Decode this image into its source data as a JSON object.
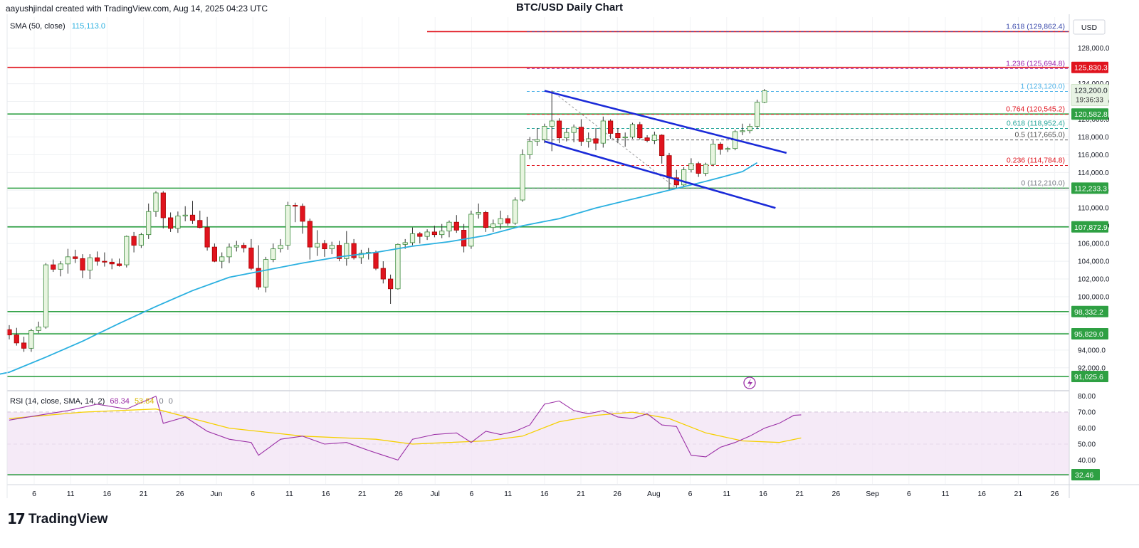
{
  "header": {
    "attribution": "aayushjindal created with TradingView.com, Aug 14, 2025 04:23 UTC",
    "title": "BTC/USD Daily Chart",
    "currency": "USD"
  },
  "sma_legend": {
    "label": "SMA (50, close)",
    "value": "115,113.0"
  },
  "rsi_legend": {
    "label": "RSI (14, close, SMA, 14, 2)",
    "value1": "68.34",
    "value2": "53.84",
    "value3": "0",
    "value4": "0"
  },
  "price_badge": {
    "price": "123,200.0",
    "countdown": "19:36:33"
  },
  "brand": {
    "name": "TradingView"
  },
  "colors": {
    "up": "#26a69a",
    "up_fill": "#ffffff",
    "down": "#e0141e",
    "sma": "#2ab0e0",
    "channel": "#1a2ad8",
    "support": "#2ea043",
    "resistance": "#e0141e",
    "rsi": "#9b2fa6",
    "rsi_sma": "#f5d000",
    "rsi_band": "#f3e5f5"
  },
  "chart_data": [
    {
      "type": "line",
      "title": "BTC/USD Daily Chart",
      "ylabel": "USD",
      "ylim": [
        89500,
        131500
      ],
      "x_ticks": [
        "6",
        "11",
        "16",
        "21",
        "26",
        "Jun",
        "6",
        "11",
        "16",
        "21",
        "26",
        "Jul",
        "6",
        "11",
        "16",
        "21",
        "26",
        "Aug",
        "6",
        "11",
        "16",
        "21",
        "26",
        "Sep",
        "6",
        "11",
        "16",
        "21",
        "26"
      ],
      "y_ticks": [
        "92,000.0",
        "94,000.0",
        "96,000.0",
        "98,000.0",
        "100,000.0",
        "102,000.0",
        "104,000.0",
        "106,000.0",
        "108,000.0",
        "110,000.0",
        "112,000.0",
        "114,000.0",
        "116,000.0",
        "118,000.0",
        "120,000.0",
        "122,000.0",
        "124,000.0",
        "128,000.0"
      ],
      "candles_ohlc": [
        [
          96300,
          96800,
          95200,
          95700
        ],
        [
          95700,
          96500,
          94500,
          94800
        ],
        [
          94800,
          95500,
          93800,
          94200
        ],
        [
          94200,
          96400,
          93800,
          96200
        ],
        [
          96200,
          97200,
          95900,
          96600
        ],
        [
          96600,
          103800,
          96400,
          103600
        ],
        [
          103600,
          104200,
          102800,
          103100
        ],
        [
          103100,
          104000,
          102300,
          103700
        ],
        [
          103700,
          105400,
          102600,
          104500
        ],
        [
          104500,
          105300,
          103800,
          104300
        ],
        [
          104300,
          104800,
          102100,
          103000
        ],
        [
          103000,
          104800,
          102000,
          104400
        ],
        [
          104400,
          105100,
          103500,
          104000
        ],
        [
          104000,
          105000,
          103400,
          103900
        ],
        [
          103900,
          104300,
          103100,
          103700
        ],
        [
          103700,
          104300,
          103400,
          103500
        ],
        [
          103600,
          106900,
          103300,
          106800
        ],
        [
          106800,
          107300,
          105000,
          105800
        ],
        [
          105800,
          107200,
          105500,
          107000
        ],
        [
          107000,
          110500,
          106500,
          109600
        ],
        [
          109600,
          111900,
          109000,
          111700
        ],
        [
          111700,
          111900,
          107700,
          108900
        ],
        [
          108900,
          109500,
          107300,
          107700
        ],
        [
          107700,
          109600,
          107200,
          109100
        ],
        [
          109100,
          110200,
          108500,
          109200
        ],
        [
          109200,
          110800,
          108200,
          108600
        ],
        [
          108600,
          109700,
          107700,
          107800
        ],
        [
          107800,
          109000,
          105200,
          105600
        ],
        [
          105600,
          106000,
          103900,
          104000
        ],
        [
          104000,
          105000,
          103200,
          104500
        ],
        [
          104500,
          106000,
          103800,
          105600
        ],
        [
          105600,
          106300,
          105100,
          105800
        ],
        [
          105800,
          106100,
          105000,
          105500
        ],
        [
          105500,
          106500,
          103000,
          103200
        ],
        [
          103200,
          105800,
          100800,
          101100
        ],
        [
          101100,
          104500,
          100500,
          104200
        ],
        [
          104200,
          106000,
          103900,
          105400
        ],
        [
          105400,
          106500,
          105000,
          105800
        ],
        [
          105800,
          110700,
          105300,
          110300
        ],
        [
          110300,
          110600,
          108400,
          110200
        ],
        [
          110200,
          110500,
          107100,
          108500
        ],
        [
          108500,
          108800,
          104200,
          105600
        ],
        [
          105600,
          107500,
          104600,
          106000
        ],
        [
          106000,
          106400,
          104500,
          105400
        ],
        [
          105400,
          106200,
          104800,
          105800
        ],
        [
          105800,
          106300,
          104000,
          104300
        ],
        [
          104300,
          107400,
          103500,
          106000
        ],
        [
          106000,
          106500,
          104200,
          104400
        ],
        [
          104400,
          105300,
          103700,
          104900
        ],
        [
          104900,
          105500,
          104200,
          105000
        ],
        [
          105000,
          105200,
          103000,
          103200
        ],
        [
          103200,
          104000,
          101500,
          102000
        ],
        [
          102000,
          102500,
          99200,
          100900
        ],
        [
          100900,
          106000,
          100800,
          105900
        ],
        [
          105900,
          106500,
          105400,
          106100
        ],
        [
          106100,
          107800,
          105800,
          107100
        ],
        [
          107100,
          107300,
          106000,
          106800
        ],
        [
          106800,
          107600,
          106400,
          107300
        ],
        [
          107300,
          108000,
          106700,
          107000
        ],
        [
          107000,
          108200,
          106600,
          107400
        ],
        [
          107400,
          108600,
          106700,
          108400
        ],
        [
          108400,
          109200,
          107200,
          107500
        ],
        [
          107500,
          108200,
          105000,
          105700
        ],
        [
          105700,
          109700,
          105400,
          109300
        ],
        [
          109300,
          110500,
          108800,
          109500
        ],
        [
          109500,
          109700,
          107300,
          107800
        ],
        [
          107800,
          108700,
          107300,
          108200
        ],
        [
          108200,
          109700,
          107600,
          108800
        ],
        [
          108800,
          109200,
          108000,
          108300
        ],
        [
          108300,
          111200,
          108100,
          110900
        ],
        [
          110900,
          116600,
          110700,
          116000
        ],
        [
          116000,
          118000,
          115500,
          117500
        ],
        [
          117500,
          119000,
          117000,
          117700
        ],
        [
          117700,
          119500,
          117300,
          119200
        ],
        [
          119200,
          123200,
          116400,
          119800
        ],
        [
          119800,
          120100,
          117300,
          117900
        ],
        [
          117900,
          119000,
          117500,
          118500
        ],
        [
          118500,
          119400,
          117400,
          119100
        ],
        [
          119100,
          120000,
          117000,
          117500
        ],
        [
          117500,
          118500,
          116800,
          117800
        ],
        [
          117800,
          119000,
          116500,
          117300
        ],
        [
          117300,
          120300,
          116800,
          119800
        ],
        [
          119800,
          120000,
          117800,
          118400
        ],
        [
          118400,
          119000,
          117300,
          117900
        ],
        [
          117900,
          118500,
          116900,
          118000
        ],
        [
          118000,
          119600,
          117800,
          119400
        ],
        [
          119400,
          119700,
          117700,
          117900
        ],
        [
          117900,
          118200,
          117400,
          117600
        ],
        [
          117600,
          118600,
          117200,
          118200
        ],
        [
          118200,
          118300,
          115000,
          115900
        ],
        [
          115900,
          116200,
          112000,
          113400
        ],
        [
          113400,
          114300,
          112200,
          112600
        ],
        [
          112600,
          114600,
          112400,
          114300
        ],
        [
          114300,
          115600,
          114000,
          115000
        ],
        [
          115000,
          115200,
          113500,
          113900
        ],
        [
          113900,
          115100,
          113600,
          114900
        ],
        [
          114900,
          117600,
          114700,
          117200
        ],
        [
          117200,
          117400,
          116000,
          116600
        ],
        [
          116600,
          116900,
          116300,
          116700
        ],
        [
          116700,
          118800,
          116500,
          118600
        ],
        [
          118600,
          119500,
          118200,
          118700
        ],
        [
          118700,
          119500,
          118400,
          119200
        ],
        [
          119200,
          122200,
          118900,
          121900
        ],
        [
          121900,
          123400,
          121800,
          123200
        ]
      ],
      "sma50": {
        "points_at_candle": [
          [
            -3,
            91020
          ],
          [
            0,
            91500
          ],
          [
            5,
            93200
          ],
          [
            10,
            95000
          ],
          [
            15,
            97000
          ],
          [
            20,
            98900
          ],
          [
            25,
            100700
          ],
          [
            30,
            102200
          ],
          [
            35,
            103000
          ],
          [
            40,
            103800
          ],
          [
            45,
            104500
          ],
          [
            50,
            105000
          ],
          [
            55,
            105700
          ],
          [
            60,
            106200
          ],
          [
            65,
            106900
          ],
          [
            70,
            108000
          ],
          [
            75,
            108800
          ],
          [
            80,
            110000
          ],
          [
            85,
            111000
          ],
          [
            90,
            112000
          ],
          [
            95,
            113000
          ],
          [
            100,
            114100
          ],
          [
            102,
            115100
          ]
        ]
      },
      "fib_levels": [
        {
          "ratio": "1.618",
          "price": 129862.4,
          "label": "1.618 (129,862.4)"
        },
        {
          "ratio": "1.236",
          "price": 125694.8,
          "label": "1.236 (125,694.8)"
        },
        {
          "ratio": "1",
          "price": 123120.0,
          "label": "1 (123,120.0)"
        },
        {
          "ratio": "0.764",
          "price": 120545.2,
          "label": "0.764 (120,545.2)"
        },
        {
          "ratio": "0.618",
          "price": 118952.4,
          "label": "0.618 (118,952.4)"
        },
        {
          "ratio": "0.5",
          "price": 117665.0,
          "label": "0.5 (117,665.0)"
        },
        {
          "ratio": "0.236",
          "price": 114784.8,
          "label": "0.236 (114,784.8)"
        },
        {
          "ratio": "0",
          "price": 112210.0,
          "label": "0 (112,210.0)"
        }
      ],
      "resistance_lines": [
        {
          "price": 129862.4,
          "label": ""
        },
        {
          "price": 125830.3,
          "label": "125,830.3"
        }
      ],
      "support_lines": [
        {
          "price": 120582.8,
          "label": "120,582.8"
        },
        {
          "price": 112233.3,
          "label": "112,233.3"
        },
        {
          "price": 107872.9,
          "label": "107,872.9"
        },
        {
          "price": 98332.2,
          "label": "98,332.2"
        },
        {
          "price": 95829.0,
          "label": "95,829.0"
        },
        {
          "price": 91025.6,
          "label": "91,025.6"
        }
      ],
      "channel": {
        "upper": [
          [
            73,
            123200
          ],
          [
            106,
            116200
          ]
        ],
        "lower": [
          [
            73,
            117500
          ],
          [
            104.5,
            110000
          ]
        ]
      },
      "current_price": 123200.0
    },
    {
      "type": "line",
      "title": "RSI (14, close, SMA, 14, 2)",
      "ylim": [
        25,
        83
      ],
      "y_ticks": [
        "80.00",
        "70.00",
        "60.00",
        "50.00",
        "40.00"
      ],
      "last_label": "32.46",
      "upper_band": 70,
      "lower_band": 30,
      "rsi_points": [
        [
          0,
          65
        ],
        [
          4,
          68
        ],
        [
          8,
          71
        ],
        [
          12,
          75
        ],
        [
          16,
          72
        ],
        [
          20,
          80
        ],
        [
          21,
          63
        ],
        [
          24,
          67
        ],
        [
          27,
          58
        ],
        [
          30,
          53
        ],
        [
          33,
          51
        ],
        [
          34,
          43
        ],
        [
          37,
          53
        ],
        [
          40,
          55
        ],
        [
          43,
          50
        ],
        [
          46,
          51
        ],
        [
          49,
          46
        ],
        [
          51,
          43
        ],
        [
          53,
          40
        ],
        [
          55,
          53
        ],
        [
          58,
          56
        ],
        [
          61,
          57
        ],
        [
          63,
          51
        ],
        [
          65,
          58
        ],
        [
          67,
          56
        ],
        [
          69,
          58
        ],
        [
          71,
          62
        ],
        [
          73,
          75
        ],
        [
          75,
          77
        ],
        [
          77,
          71
        ],
        [
          79,
          69
        ],
        [
          81,
          71
        ],
        [
          83,
          67
        ],
        [
          85,
          66
        ],
        [
          87,
          69
        ],
        [
          89,
          62
        ],
        [
          91,
          61
        ],
        [
          93,
          43
        ],
        [
          95,
          42
        ],
        [
          97,
          48
        ],
        [
          99,
          51
        ],
        [
          101,
          55
        ],
        [
          103,
          60
        ],
        [
          105,
          63
        ],
        [
          107,
          68
        ],
        [
          108,
          68.34
        ]
      ],
      "rsi_sma_points": [
        [
          0,
          66
        ],
        [
          10,
          70
        ],
        [
          20,
          72
        ],
        [
          30,
          60
        ],
        [
          40,
          55
        ],
        [
          50,
          53
        ],
        [
          55,
          50
        ],
        [
          60,
          51
        ],
        [
          65,
          52
        ],
        [
          70,
          55
        ],
        [
          75,
          64
        ],
        [
          80,
          68
        ],
        [
          85,
          70
        ],
        [
          90,
          66
        ],
        [
          95,
          57
        ],
        [
          100,
          52
        ],
        [
          105,
          51
        ],
        [
          108,
          53.84
        ]
      ]
    }
  ]
}
